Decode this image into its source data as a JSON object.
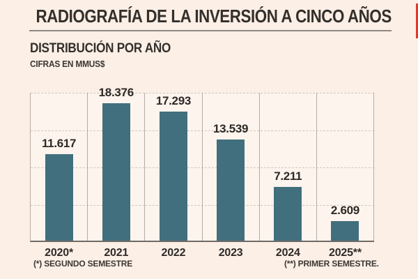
{
  "page": {
    "title": "RADIOGRAFÍA DE LA INVERSIÓN A CINCO AÑOS",
    "subtitle": "DISTRIBUCIÓN POR AÑO",
    "units_note": "CIFRAS EN MMUS$",
    "footnote_left": "(*) SEGUNDO SEMESTRE",
    "footnote_right": "(**) PRIMER SEMESTRE."
  },
  "colors": {
    "background": "#fcefe6",
    "plot_background": "#fdf4ed",
    "bar": "#416f7e",
    "text_dark": "#332f2b",
    "grid_dashed": "#cfc6bd",
    "column_separator": "#b3aca6",
    "axis_bottom": "#6f6a66",
    "title_underline": "#8f8983",
    "edge_accent_red": "#e2372b"
  },
  "chart_data": {
    "type": "bar",
    "title": "DISTRIBUCIÓN POR AÑO",
    "subtitle_units": "CIFRAS EN MMUS$",
    "categories": [
      "2020*",
      "2021",
      "2022",
      "2023",
      "2024",
      "2025**"
    ],
    "values": [
      11617,
      18376,
      17293,
      13539,
      7211,
      2609
    ],
    "value_labels": [
      "11.617",
      "18.376",
      "17.293",
      "13.539",
      "7.211",
      "2.609"
    ],
    "xlabel": "",
    "ylabel": "MMUS$",
    "ylim": [
      0,
      20000
    ],
    "gridlines": [
      5000,
      10000,
      15000,
      20000
    ],
    "grid": "horizontal-dashed, vertical column separators",
    "legend": "none",
    "annotations": [
      "(*) SEGUNDO SEMESTRE",
      "(**) PRIMER SEMESTRE."
    ]
  }
}
